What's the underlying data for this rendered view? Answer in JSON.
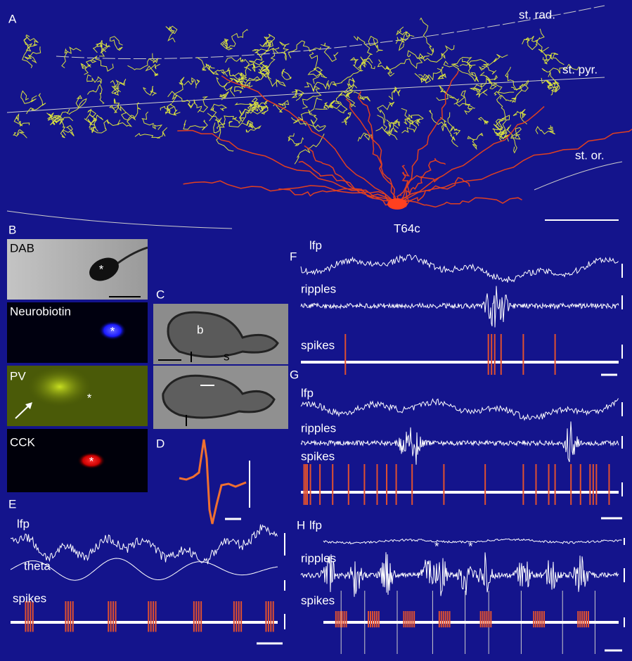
{
  "panel_a": {
    "label": "A",
    "layers": [
      "st. rad.",
      "st. pyr.",
      "st. or."
    ],
    "cell": "T64c"
  },
  "panel_b": {
    "label": "B",
    "images": [
      {
        "label": "DAB",
        "marker": "*"
      },
      {
        "label": "Neurobiotin",
        "marker": "*"
      },
      {
        "label": "PV",
        "marker": "*"
      },
      {
        "label": "CCK",
        "marker": "*"
      }
    ]
  },
  "panel_c": {
    "label": "C",
    "labels": [
      "b",
      "s"
    ]
  },
  "panel_d": {
    "label": "D"
  },
  "panel_e": {
    "label": "E",
    "traces": [
      "lfp",
      "theta",
      "spikes"
    ]
  },
  "panel_f": {
    "label": "F",
    "traces": [
      "lfp",
      "ripples",
      "spikes"
    ]
  },
  "panel_g": {
    "label": "G",
    "traces": [
      "lfp",
      "ripples",
      "spikes"
    ]
  },
  "panel_h": {
    "label": "H",
    "traces": [
      "lfp",
      "ripples",
      "spikes"
    ],
    "markers": [
      "*",
      "*"
    ]
  }
}
